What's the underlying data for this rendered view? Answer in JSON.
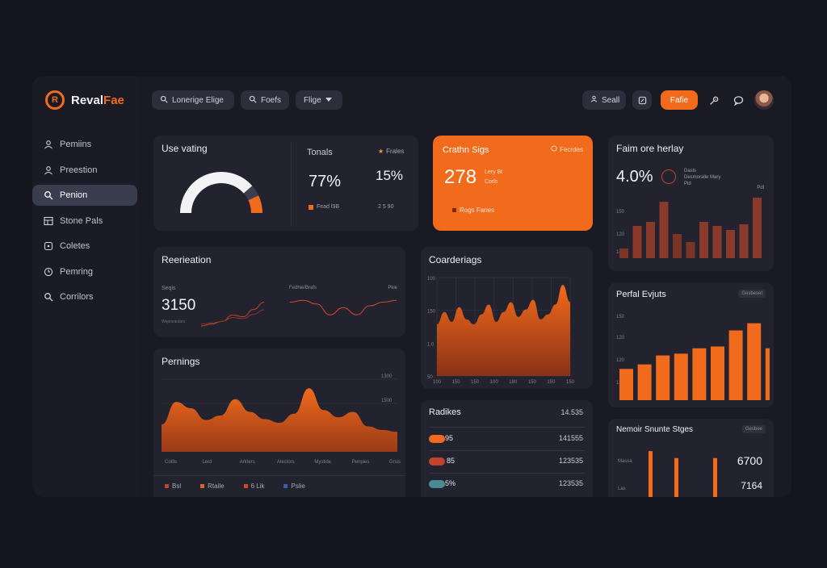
{
  "brand": {
    "name_main": "Reval",
    "name_accent": "Fae",
    "logo_text": "R"
  },
  "topbar": {
    "search1": "Lonerige Elige",
    "search2": "Foefs",
    "filter": "Flige",
    "seal_label": "Seall",
    "primary_label": "Fafie"
  },
  "sidebar": {
    "items": [
      {
        "label": "Pemiins",
        "icon": "user-icon"
      },
      {
        "label": "Preestion",
        "icon": "user-icon"
      },
      {
        "label": "Penion",
        "icon": "search-icon"
      },
      {
        "label": "Stone Pals",
        "icon": "grid-icon"
      },
      {
        "label": "Coletes",
        "icon": "tag-icon"
      },
      {
        "label": "Pemring",
        "icon": "clock-icon"
      },
      {
        "label": "Corrilors",
        "icon": "search-icon"
      }
    ]
  },
  "use_rating": {
    "title": "Use vating",
    "gauge_value": 0.77,
    "col_title": "Tonals",
    "badge": "Frales",
    "pct1": "77%",
    "pct2": "15%",
    "foot1": "Fead l9B",
    "foot2": "2 5 90"
  },
  "orange_card": {
    "title": "Crathn Sigs",
    "badge": "Fecrdes",
    "value": "278",
    "line1": "Lery Bt",
    "line2": "Corls",
    "foot": "Rogs Fanes"
  },
  "faim_card": {
    "title": "Faim ore herlay",
    "value": "4.0%",
    "legend1": "Dasls",
    "legend2": "Desmoralle Mary",
    "legend3": "Pid",
    "corner": "Pdl",
    "ticks": [
      "150",
      "120",
      "140"
    ],
    "values": [
      12,
      40,
      45,
      70,
      30,
      20,
      45,
      40,
      35,
      42,
      75
    ]
  },
  "reer_card": {
    "title": "Reerieation",
    "left_label": "Seqis",
    "value": "3150",
    "caption": "Wepnesulars",
    "mid_label": "Fedhie/Brafs",
    "right_label": "Pkie",
    "left_series": [
      0,
      2,
      5,
      12,
      10,
      18,
      26
    ],
    "right_series": [
      28,
      30,
      26,
      14,
      22,
      14,
      24,
      28,
      30
    ]
  },
  "coarder_card": {
    "title": "Coarderiags",
    "y_ticks": [
      "100",
      "150",
      "1.0",
      "50"
    ],
    "x_ticks": [
      "100",
      "150",
      "150",
      "100",
      "180",
      "150",
      "150",
      "150"
    ],
    "values": [
      42,
      52,
      44,
      56,
      46,
      42,
      50,
      58,
      44,
      52,
      60,
      48,
      54,
      62,
      46,
      50,
      58,
      74,
      60
    ]
  },
  "perf_card": {
    "title": "Perfal Evjuts",
    "badge": "Gesbeset",
    "ticks": [
      "150",
      "120",
      "120",
      "120"
    ],
    "values": [
      35,
      40,
      50,
      52,
      58,
      60,
      78,
      86,
      58
    ]
  },
  "pernings": {
    "title": "Pernings",
    "y_ticks": [
      "1300",
      "1500",
      "1300"
    ],
    "x_ticks": [
      "Cotlls",
      "Lerd",
      "Arkters",
      "Alestors",
      "Mystide",
      "Penpies",
      "Grsis"
    ],
    "values": [
      30,
      55,
      48,
      35,
      40,
      58,
      44,
      36,
      32,
      42,
      70,
      46,
      38,
      44,
      28,
      24,
      22
    ],
    "legend": [
      {
        "label": "Bsl",
        "color": "#c0442a"
      },
      {
        "label": "Rtaile",
        "color": "#e0612c"
      },
      {
        "label": "6 Lik",
        "color": "#d4482a"
      },
      {
        "label": "Pslie",
        "color": "#3a5ea8"
      }
    ]
  },
  "radikes": {
    "title": "Radikes",
    "header_value": "14.535",
    "rows": [
      {
        "label": "95",
        "value": "141555",
        "color": "#f26a1b"
      },
      {
        "label": "85",
        "value": "123535",
        "color": "#c0442a"
      },
      {
        "label": "5%",
        "value": "123535",
        "color": "#4a8a90"
      }
    ]
  },
  "nemoir": {
    "title": "Nemoir Snunte Stges",
    "badge": "Gesbee",
    "label1": "Massa",
    "label2": "Las",
    "value1": "6700",
    "value2": "7164",
    "values": [
      85,
      72,
      72
    ]
  },
  "colors": {
    "accent": "#f26a1b",
    "card": "#22232f",
    "bg": "#14151f"
  }
}
